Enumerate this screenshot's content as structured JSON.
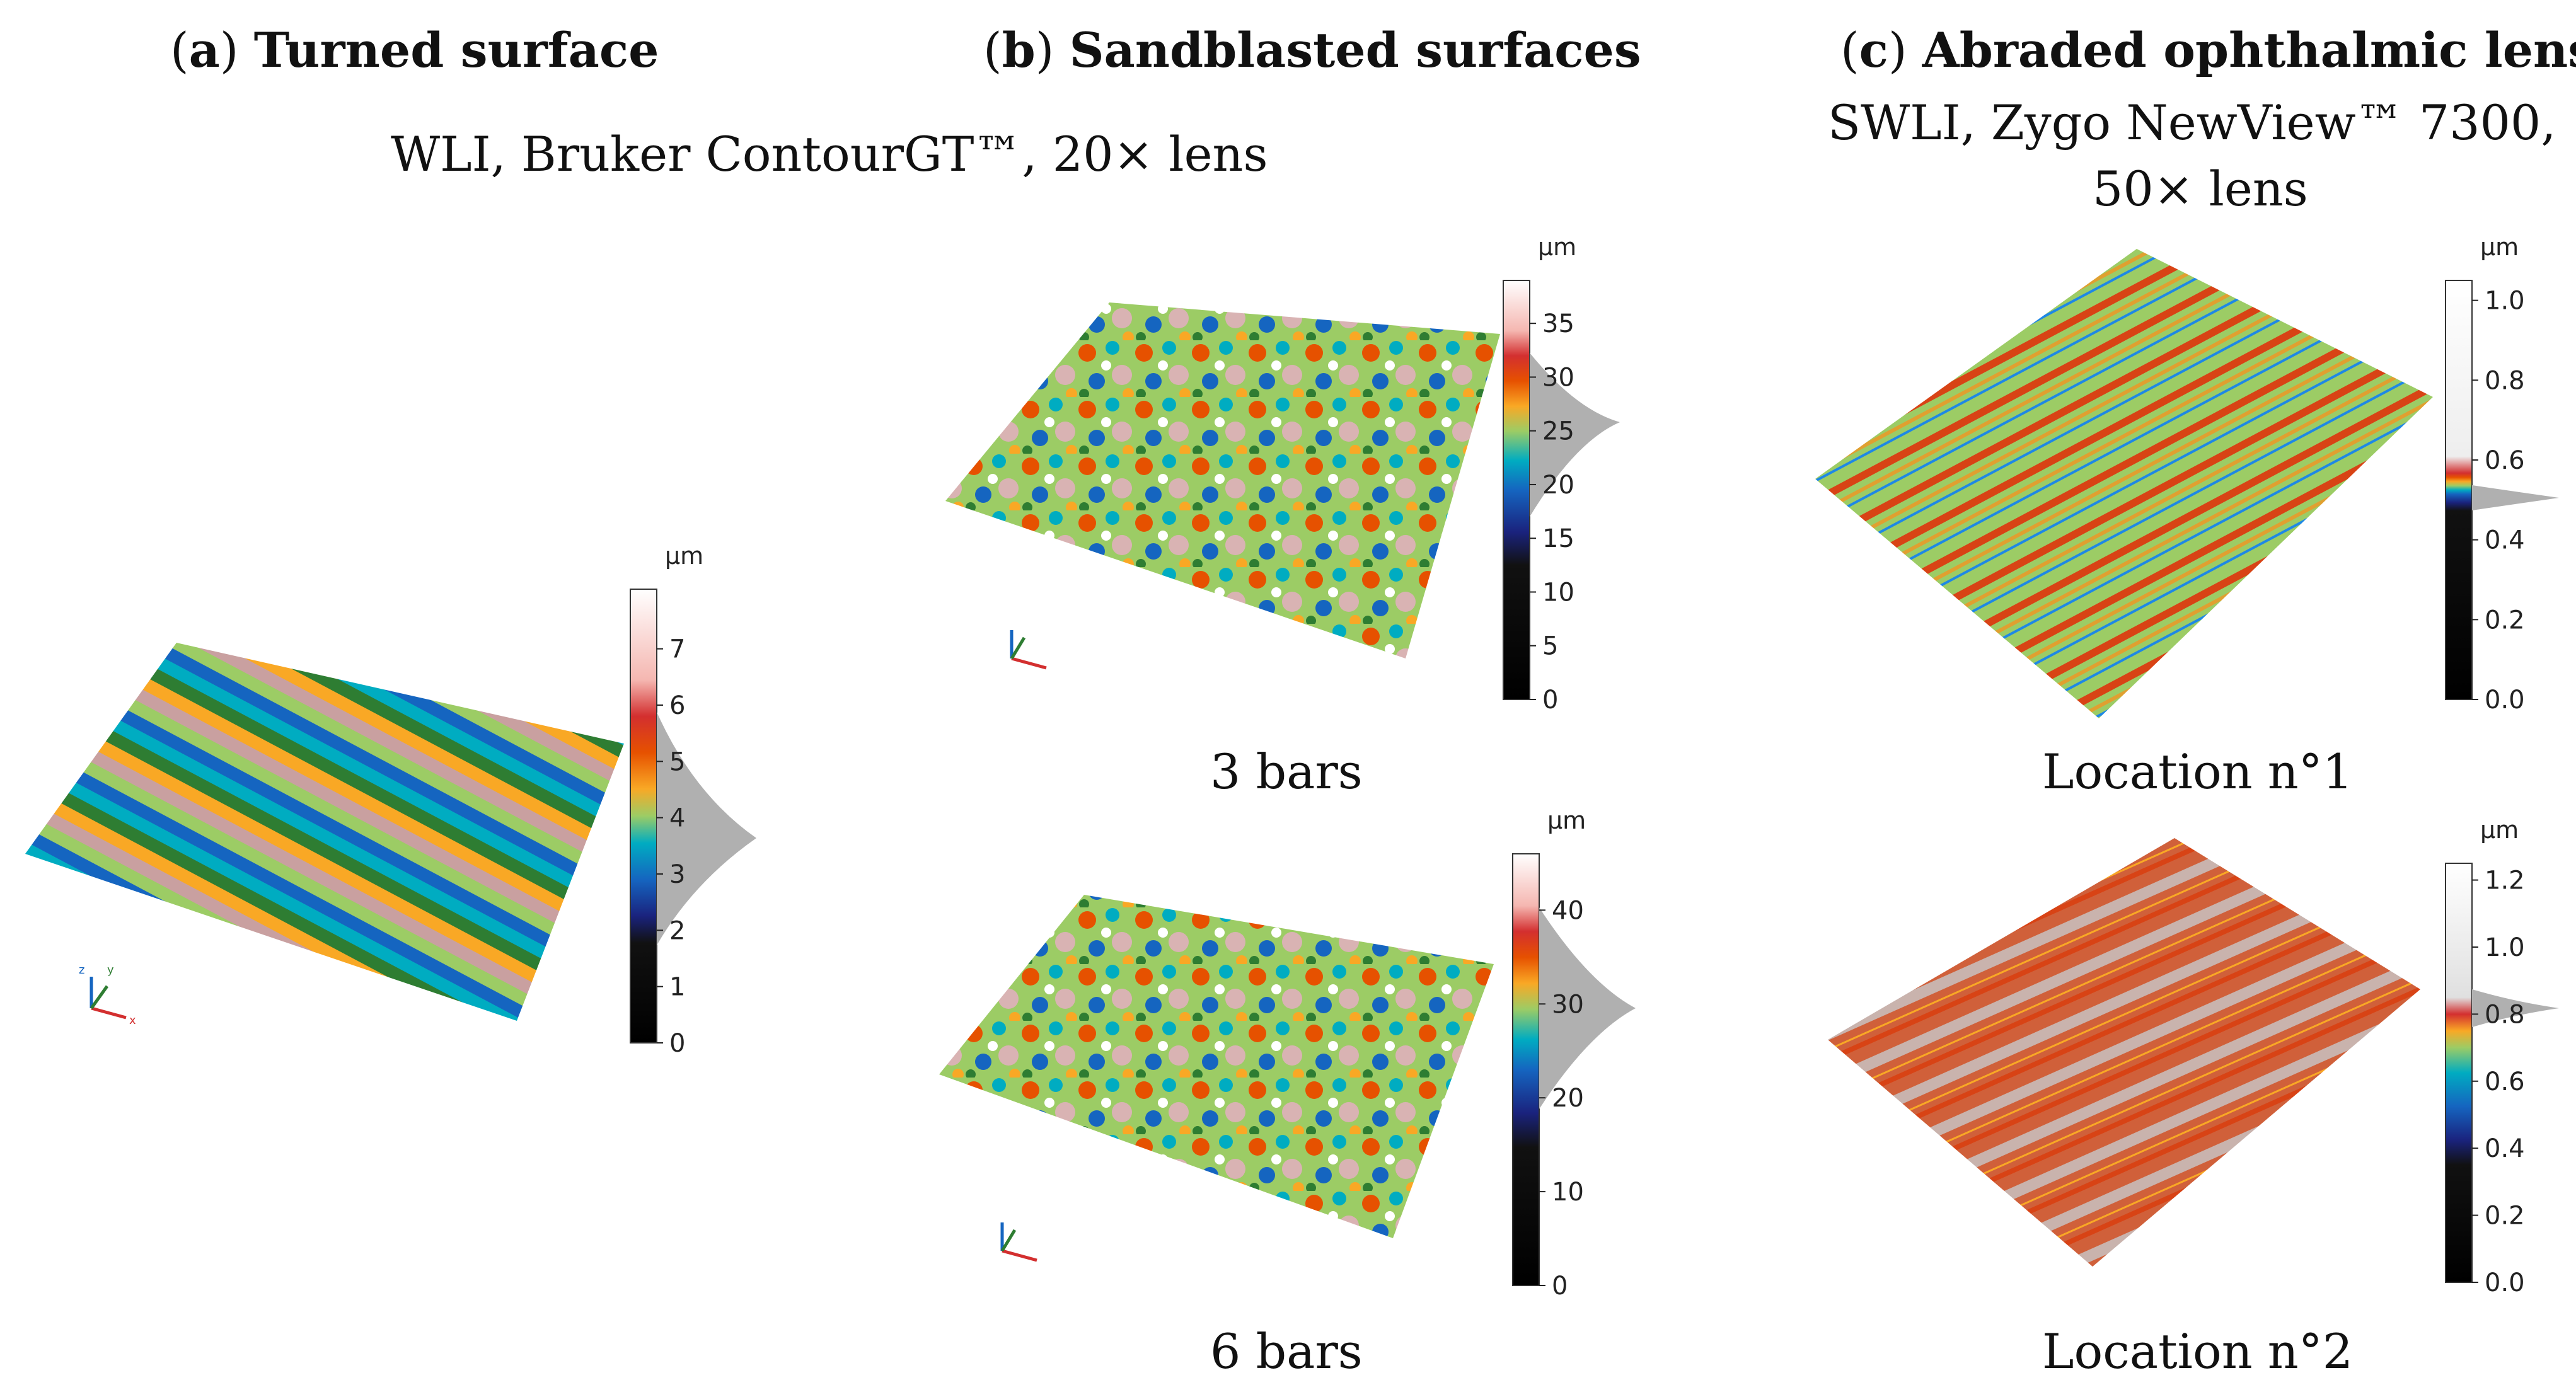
{
  "panels": {
    "a": {
      "letter": "a",
      "title": "Turned surface"
    },
    "b": {
      "letter": "b",
      "title": "Sandblasted surfaces"
    },
    "c": {
      "letter": "c",
      "title": "Abraded ophthalmic lens"
    }
  },
  "instruments": {
    "ab": "WLI, Bruker ContourGT™, 20× lens",
    "c_line1": "SWLI, Zygo NewView™ 7300,",
    "c_line2": "50× lens"
  },
  "captions": {
    "b_top": "3 bars",
    "b_bottom": "6 bars",
    "c_top": "Location n°1",
    "c_bottom": "Location n°2"
  },
  "scales": {
    "a": {
      "unit": "µm",
      "ticks": [
        "0",
        "1",
        "2",
        "3",
        "4",
        "5",
        "6",
        "7"
      ]
    },
    "b1": {
      "unit": "µm",
      "ticks": [
        "0",
        "5",
        "10",
        "15",
        "20",
        "25",
        "30",
        "35"
      ]
    },
    "b2": {
      "unit": "µm",
      "ticks": [
        "0",
        "10",
        "20",
        "30",
        "40"
      ]
    },
    "c1": {
      "unit": "µm",
      "ticks": [
        "0.0",
        "0.2",
        "0.4",
        "0.6",
        "0.8",
        "1.0"
      ]
    },
    "c2": {
      "unit": "µm",
      "ticks": [
        "0.0",
        "0.2",
        "0.4",
        "0.6",
        "0.8",
        "1.0",
        "1.2"
      ]
    }
  },
  "axis_labels": {
    "x": "x",
    "y": "y",
    "z": "z"
  },
  "colors": {
    "palette": [
      "#000000",
      "#1a237e",
      "#1565c0",
      "#00acc1",
      "#2e7d32",
      "#9ccc65",
      "#f9a825",
      "#e65100",
      "#d32f2f",
      "#f5b7b1",
      "#ffffff"
    ],
    "histogram": "#b0b0b0"
  }
}
